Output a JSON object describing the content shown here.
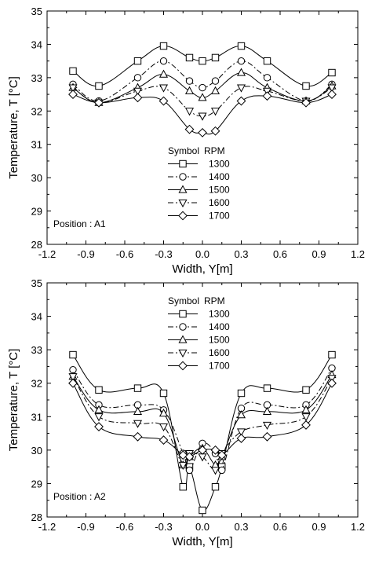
{
  "chart_data": [
    {
      "type": "line",
      "annotation": "Position : A1",
      "xlabel": "Width, Y[m]",
      "ylabel": "Temperature, T [°C]",
      "xlim": [
        -1.2,
        1.2
      ],
      "ylim": [
        28,
        35
      ],
      "xticks": [
        "-1.2",
        "-0.9",
        "-0.6",
        "-0.3",
        "0.0",
        "0.3",
        "0.6",
        "0.9",
        "1.2"
      ],
      "yticks": [
        "28",
        "29",
        "30",
        "31",
        "32",
        "33",
        "34",
        "35"
      ],
      "legend_header": [
        "Symbol",
        "RPM"
      ],
      "legend_position": "center",
      "x": [
        -1.0,
        -0.8,
        -0.5,
        -0.3,
        -0.1,
        0.0,
        0.1,
        0.3,
        0.5,
        0.8,
        1.0
      ],
      "series": [
        {
          "name": "1300",
          "marker": "square",
          "dash": "solid",
          "values": [
            33.2,
            32.75,
            33.5,
            33.95,
            33.6,
            33.5,
            33.6,
            33.95,
            33.5,
            32.75,
            33.15
          ]
        },
        {
          "name": "1400",
          "marker": "circle",
          "dash": "dashdot",
          "values": [
            32.8,
            32.3,
            33.0,
            33.5,
            32.9,
            32.7,
            32.9,
            33.5,
            33.0,
            32.3,
            32.8
          ]
        },
        {
          "name": "1500",
          "marker": "triangle-up",
          "dash": "solid",
          "values": [
            32.7,
            32.25,
            32.7,
            33.1,
            32.6,
            32.4,
            32.6,
            33.15,
            32.7,
            32.3,
            32.75
          ]
        },
        {
          "name": "1600",
          "marker": "triangle-down",
          "dash": "dashdot",
          "values": [
            32.7,
            32.25,
            32.6,
            32.7,
            32.0,
            31.85,
            32.0,
            32.7,
            32.6,
            32.3,
            32.7
          ]
        },
        {
          "name": "1700",
          "marker": "diamond",
          "dash": "solid",
          "values": [
            32.5,
            32.25,
            32.4,
            32.3,
            31.45,
            31.35,
            31.4,
            32.3,
            32.45,
            32.25,
            32.5
          ]
        }
      ]
    },
    {
      "type": "line",
      "annotation": "Position : A2",
      "xlabel": "Width, Y[m]",
      "ylabel": "Temperature, T [°C]",
      "xlim": [
        -1.2,
        1.2
      ],
      "ylim": [
        28,
        35
      ],
      "xticks": [
        "-1.2",
        "-0.9",
        "-0.6",
        "-0.3",
        "0.0",
        "0.3",
        "0.6",
        "0.9",
        "1.2"
      ],
      "yticks": [
        "28",
        "29",
        "30",
        "31",
        "32",
        "33",
        "34",
        "35"
      ],
      "legend_header": [
        "Symbol",
        "RPM"
      ],
      "legend_position": "top-center",
      "x": [
        -1.0,
        -0.8,
        -0.5,
        -0.3,
        -0.15,
        -0.1,
        0.0,
        0.1,
        0.15,
        0.3,
        0.5,
        0.8,
        1.0
      ],
      "series": [
        {
          "name": "1300",
          "marker": "square",
          "dash": "solid",
          "values": [
            32.85,
            31.8,
            31.85,
            31.7,
            28.9,
            29.5,
            28.2,
            28.9,
            29.5,
            31.7,
            31.85,
            31.8,
            32.85
          ]
        },
        {
          "name": "1400",
          "marker": "circle",
          "dash": "dashdot",
          "values": [
            32.4,
            31.35,
            31.35,
            31.2,
            29.9,
            29.4,
            30.2,
            29.9,
            29.4,
            31.25,
            31.35,
            31.35,
            32.45
          ]
        },
        {
          "name": "1500",
          "marker": "triangle-up",
          "dash": "solid",
          "values": [
            32.2,
            31.2,
            31.15,
            31.1,
            29.55,
            29.8,
            30.05,
            29.55,
            29.8,
            31.05,
            31.15,
            31.2,
            32.25
          ]
        },
        {
          "name": "1600",
          "marker": "triangle-down",
          "dash": "dashdot",
          "values": [
            32.2,
            31.0,
            30.8,
            30.7,
            29.55,
            29.9,
            29.8,
            29.4,
            29.9,
            30.55,
            30.75,
            31.0,
            32.15
          ]
        },
        {
          "name": "1700",
          "marker": "diamond",
          "dash": "solid",
          "values": [
            32.0,
            30.7,
            30.4,
            30.3,
            29.85,
            29.8,
            30.0,
            30.0,
            29.85,
            30.35,
            30.4,
            30.75,
            32.0
          ]
        }
      ]
    }
  ]
}
